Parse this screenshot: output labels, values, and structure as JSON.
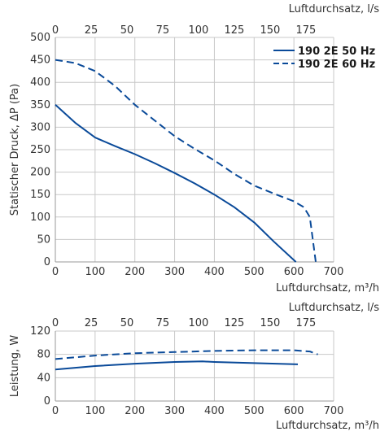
{
  "colors": {
    "series": "#0a4a99",
    "grid": "#c8c8c8",
    "axis": "#9a9a9a",
    "text": "#333333"
  },
  "chart_data": [
    {
      "type": "line",
      "ylabel": "Statischer Druck, ΔP (Pa)",
      "xlabel": "Luftdurchsatz, m³/h",
      "x2label": "Luftdurchsatz, l/s",
      "xlim": [
        0,
        700
      ],
      "ylim": [
        0,
        500
      ],
      "x2lim": [
        0,
        194.4
      ],
      "xticks": [
        0,
        100,
        200,
        300,
        400,
        500,
        600,
        700
      ],
      "yticks": [
        0,
        50,
        100,
        150,
        200,
        250,
        300,
        350,
        400,
        450,
        500
      ],
      "x2ticks": [
        0,
        25,
        50,
        75,
        100,
        125,
        150,
        175
      ],
      "grid": true,
      "legend": "top-right",
      "series": [
        {
          "name": "190 2E 50 Hz",
          "style": "solid",
          "x": [
            0,
            50,
            100,
            150,
            200,
            250,
            300,
            350,
            400,
            450,
            500,
            550,
            605
          ],
          "y": [
            350,
            310,
            277,
            258,
            240,
            220,
            198,
            175,
            150,
            122,
            88,
            45,
            0
          ]
        },
        {
          "name": "190 2E 60 Hz",
          "style": "dashed",
          "x": [
            0,
            50,
            100,
            150,
            200,
            250,
            300,
            350,
            400,
            450,
            500,
            550,
            600,
            625,
            640,
            655
          ],
          "y": [
            450,
            443,
            425,
            392,
            350,
            315,
            280,
            252,
            226,
            196,
            170,
            152,
            135,
            122,
            100,
            0
          ]
        }
      ]
    },
    {
      "type": "line",
      "ylabel": "Leistung, W",
      "xlabel": "Luftdurchsatz, m³/h",
      "x2label": "Luftdurchsatz, l/s",
      "xlim": [
        0,
        700
      ],
      "ylim": [
        0,
        120
      ],
      "x2lim": [
        0,
        194.4
      ],
      "xticks": [
        0,
        100,
        200,
        300,
        400,
        500,
        600,
        700
      ],
      "yticks": [
        0,
        40,
        80,
        120
      ],
      "x2ticks": [
        0,
        25,
        50,
        75,
        100,
        125,
        150,
        175
      ],
      "grid": true,
      "series": [
        {
          "style": "solid",
          "x": [
            0,
            100,
            200,
            300,
            370,
            400,
            500,
            610
          ],
          "y": [
            54,
            60,
            64,
            67,
            68,
            67,
            65,
            63
          ]
        },
        {
          "style": "dashed",
          "x": [
            0,
            100,
            200,
            300,
            400,
            500,
            600,
            640,
            660
          ],
          "y": [
            72,
            78,
            82,
            84,
            86,
            87,
            87,
            85,
            80
          ]
        }
      ]
    }
  ]
}
